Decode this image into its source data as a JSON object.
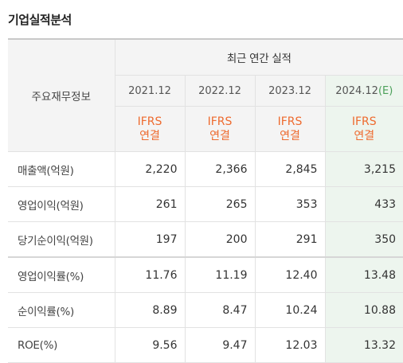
{
  "section": {
    "title": "기업실적분석"
  },
  "header": {
    "row_label": "주요재무정보",
    "period_title": "최근 연간 실적",
    "years": [
      "2021.12",
      "2022.12",
      "2023.12",
      "2024.12"
    ],
    "estimate_mark": "(E)",
    "basis_line1": "IFRS",
    "basis_line2": "연결"
  },
  "rows": [
    {
      "label": "매출액(억원)",
      "values": [
        "2,220",
        "2,366",
        "2,845",
        "3,215"
      ]
    },
    {
      "label": "영업이익(억원)",
      "values": [
        "261",
        "265",
        "353",
        "433"
      ]
    },
    {
      "label": "당기순이익(억원)",
      "values": [
        "197",
        "200",
        "291",
        "350"
      ]
    },
    {
      "label": "영업이익률(%)",
      "values": [
        "11.76",
        "11.19",
        "12.40",
        "13.48"
      ]
    },
    {
      "label": "순이익률(%)",
      "values": [
        "8.89",
        "8.47",
        "10.24",
        "10.88"
      ]
    },
    {
      "label": "ROE(%)",
      "values": [
        "9.56",
        "9.47",
        "12.03",
        "13.32"
      ]
    }
  ],
  "colors": {
    "basis": "#ee6a2e",
    "estimate_bg": "#edf5ee",
    "estimate_mark": "#4ca15a"
  }
}
